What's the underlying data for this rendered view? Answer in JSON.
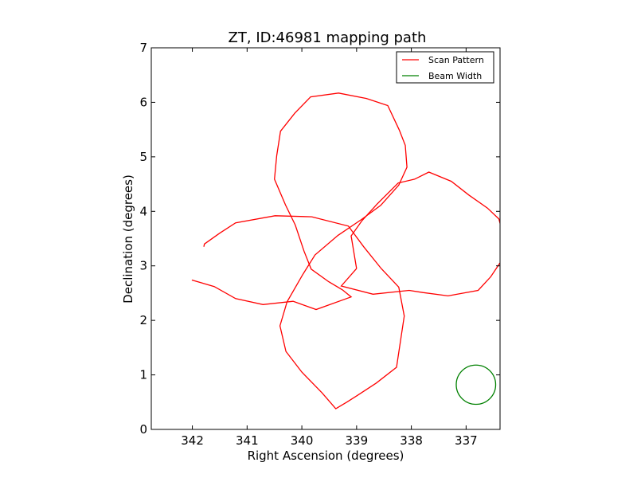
{
  "chart_data": {
    "type": "line",
    "title": "ZT, ID:46981 mapping path",
    "xlabel": "Right Ascension (degrees)",
    "ylabel": "Declination (degrees)",
    "xlim": [
      342.75,
      336.38
    ],
    "ylim": [
      0,
      7
    ],
    "x_inverted": true,
    "x_ticks": [
      342,
      341,
      340,
      339,
      338,
      337
    ],
    "y_ticks": [
      0,
      1,
      2,
      3,
      4,
      5,
      6,
      7
    ],
    "grid": false,
    "legend_position": "top-right",
    "series": [
      {
        "name": "Scan Pattern",
        "color": "#ff0000",
        "points": [
          [
            341.79,
            3.35
          ],
          [
            341.78,
            3.4
          ],
          [
            341.5,
            3.6
          ],
          [
            341.21,
            3.79
          ],
          [
            340.49,
            3.92
          ],
          [
            339.82,
            3.9
          ],
          [
            339.15,
            3.73
          ],
          [
            338.87,
            3.35
          ],
          [
            338.55,
            2.95
          ],
          [
            338.23,
            2.61
          ],
          [
            338.13,
            2.08
          ],
          [
            338.27,
            1.14
          ],
          [
            338.64,
            0.85
          ],
          [
            338.99,
            0.62
          ],
          [
            339.18,
            0.5
          ],
          [
            339.38,
            0.38
          ],
          [
            339.63,
            0.67
          ],
          [
            340.0,
            1.05
          ],
          [
            340.29,
            1.43
          ],
          [
            340.4,
            1.9
          ],
          [
            340.27,
            2.34
          ],
          [
            339.99,
            2.83
          ],
          [
            339.76,
            3.2
          ],
          [
            339.34,
            3.56
          ],
          [
            338.91,
            3.85
          ],
          [
            338.56,
            4.11
          ],
          [
            338.23,
            4.48
          ],
          [
            338.08,
            4.81
          ],
          [
            338.11,
            5.21
          ],
          [
            338.22,
            5.49
          ],
          [
            338.43,
            5.94
          ],
          [
            338.82,
            6.07
          ],
          [
            339.33,
            6.17
          ],
          [
            339.84,
            6.1
          ],
          [
            340.13,
            5.8
          ],
          [
            340.39,
            5.47
          ],
          [
            340.46,
            5.02
          ],
          [
            340.5,
            4.59
          ],
          [
            340.3,
            4.12
          ],
          [
            340.12,
            3.75
          ],
          [
            339.96,
            3.27
          ],
          [
            339.83,
            2.94
          ],
          [
            339.51,
            2.71
          ],
          [
            339.26,
            2.56
          ],
          [
            339.1,
            2.43
          ],
          [
            339.74,
            2.2
          ],
          [
            340.16,
            2.35
          ],
          [
            340.71,
            2.29
          ],
          [
            341.21,
            2.4
          ],
          [
            341.6,
            2.62
          ],
          [
            342.01,
            2.74
          ]
        ],
        "points_part2": [
          [
            339.0,
            2.95
          ],
          [
            339.28,
            2.63
          ],
          [
            338.7,
            2.48
          ],
          [
            338.04,
            2.55
          ],
          [
            337.79,
            2.51
          ],
          [
            337.33,
            2.45
          ],
          [
            336.78,
            2.55
          ],
          [
            336.55,
            2.8
          ],
          [
            336.37,
            3.07
          ],
          [
            336.3,
            3.47
          ],
          [
            336.4,
            3.86
          ],
          [
            336.61,
            4.06
          ],
          [
            336.95,
            4.3
          ],
          [
            337.27,
            4.55
          ],
          [
            337.68,
            4.72
          ],
          [
            337.94,
            4.59
          ],
          [
            338.24,
            4.52
          ],
          [
            338.63,
            4.13
          ],
          [
            338.9,
            3.83
          ],
          [
            339.1,
            3.55
          ],
          [
            339.0,
            2.95
          ]
        ]
      },
      {
        "name": "Beam Width",
        "color": "#008000",
        "circle": {
          "center": [
            336.82,
            0.82
          ],
          "radius": 0.36
        }
      }
    ]
  }
}
